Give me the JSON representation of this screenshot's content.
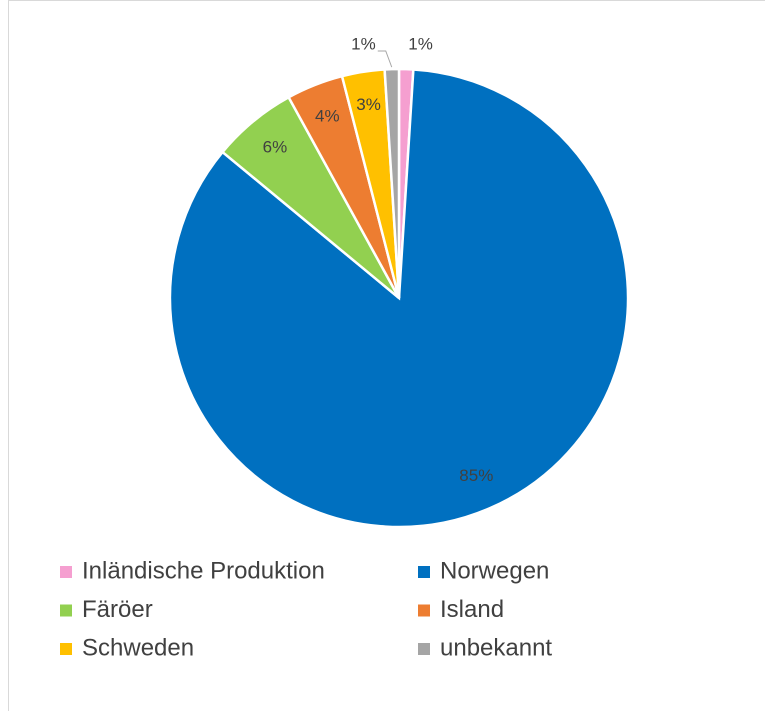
{
  "chart_data": {
    "type": "pie",
    "categories": [
      "Inländische Produktion",
      "Norwegen",
      "Färöer",
      "Island",
      "Schweden",
      "unbekannt"
    ],
    "values": [
      1,
      85,
      6,
      4,
      3,
      1
    ],
    "value_labels": [
      "1%",
      "85%",
      "6%",
      "4%",
      "3%",
      "1%"
    ],
    "colors": [
      "#f59fd0",
      "#0070c0",
      "#92d050",
      "#ed7d31",
      "#ffc000",
      "#a5a5a5"
    ],
    "legend": "bottom"
  }
}
